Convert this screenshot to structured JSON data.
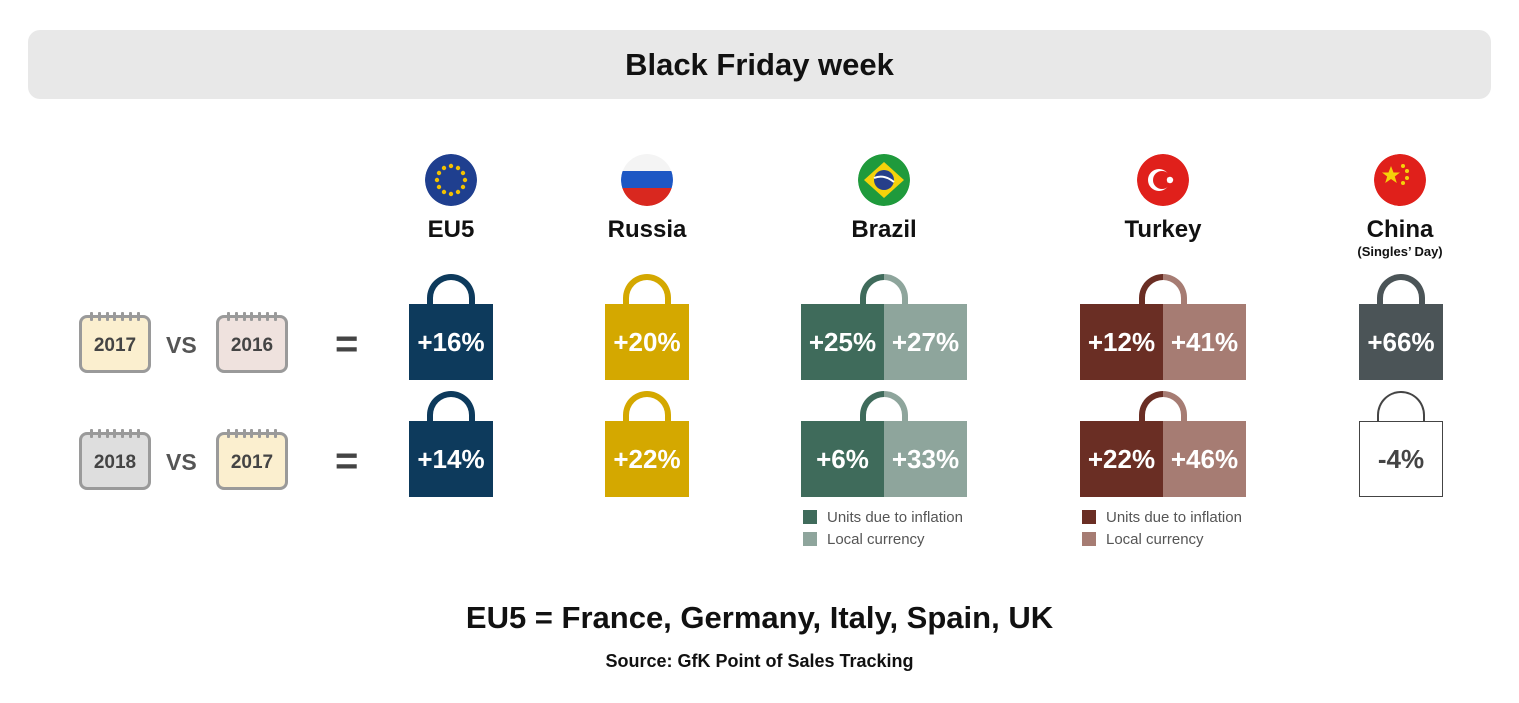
{
  "title": "Black Friday week",
  "countries": [
    {
      "name": "EU5",
      "sub": "",
      "flag": "eu-flag-icon"
    },
    {
      "name": "Russia",
      "sub": "",
      "flag": "russia-flag-icon"
    },
    {
      "name": "Brazil",
      "sub": "",
      "flag": "brazil-flag-icon"
    },
    {
      "name": "Turkey",
      "sub": "",
      "flag": "turkey-flag-icon"
    },
    {
      "name": "China",
      "sub": "(Singles’ Day)",
      "flag": "china-flag-icon"
    }
  ],
  "rows": [
    {
      "year_a": "2017",
      "vs": "VS",
      "year_b": "2016",
      "eq": "="
    },
    {
      "year_a": "2018",
      "vs": "VS",
      "year_b": "2017",
      "eq": "="
    }
  ],
  "values": {
    "eu5": [
      "+16%",
      "+14%"
    ],
    "russia": [
      "+20%",
      "+22%"
    ],
    "brazil_units": [
      "+25%",
      "+6%"
    ],
    "brazil_local": [
      "+27%",
      "+33%"
    ],
    "turkey_units": [
      "+12%",
      "+22%"
    ],
    "turkey_local": [
      "+41%",
      "+46%"
    ],
    "china": [
      "+66%",
      "-4%"
    ]
  },
  "legend": {
    "units": "Units due to inflation",
    "local": "Local currency"
  },
  "colors": {
    "eu5": "#0d3a5c",
    "russia": "#d4a800",
    "brazil_dark": "#3f6b5b",
    "brazil_light": "#8ea59c",
    "turkey_dark": "#6a2e24",
    "turkey_light": "#a67c73",
    "china": "#4b5457"
  },
  "footer": {
    "definition": "EU5 = France, Germany, Italy, Spain, UK",
    "source": "Source: GfK Point of Sales Tracking"
  }
}
